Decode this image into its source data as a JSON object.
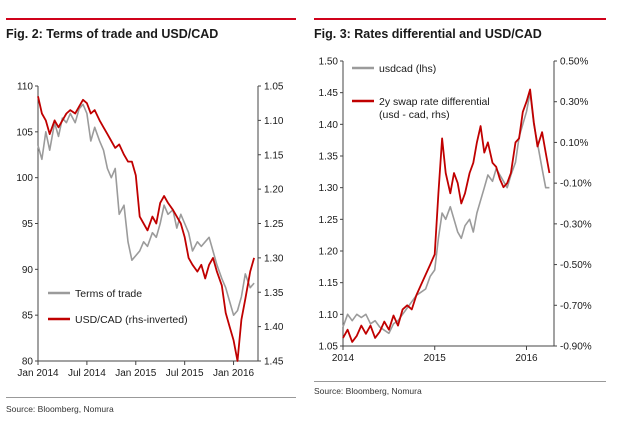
{
  "colors": {
    "accent": "#d0021b",
    "series_grey": "#9b9b9b",
    "series_red": "#c00000"
  },
  "chart_data": [
    {
      "type": "line",
      "title": "Fig. 2: Terms of trade and USD/CAD",
      "source": "Source: Bloomberg, Nomura",
      "grid": false,
      "legend_position": "bottom-left",
      "x_tick_labels": [
        "Jan 2014",
        "Jul 2014",
        "Jan 2015",
        "Jul 2015",
        "Jan 2016"
      ],
      "x_tick_values": [
        2014.0,
        2014.5,
        2015.0,
        2015.5,
        2016.0
      ],
      "xlim": [
        2014.0,
        2016.25
      ],
      "ylim_left": [
        80,
        110
      ],
      "y_left_ticks": [
        "80",
        "85",
        "90",
        "95",
        "100",
        "105",
        "110"
      ],
      "ylim_right": [
        1.45,
        1.05
      ],
      "y_right_inverted": true,
      "y_right_ticks": [
        "1.05",
        "1.10",
        "1.15",
        "1.20",
        "1.25",
        "1.30",
        "1.35",
        "1.40",
        "1.45"
      ],
      "series": [
        {
          "name": "Terms of trade",
          "axis": "left",
          "color": "#9b9b9b",
          "points": [
            [
              2014.0,
              103.5
            ],
            [
              2014.04,
              102
            ],
            [
              2014.08,
              105
            ],
            [
              2014.12,
              103
            ],
            [
              2014.17,
              106
            ],
            [
              2014.21,
              104.5
            ],
            [
              2014.25,
              106.5
            ],
            [
              2014.29,
              106
            ],
            [
              2014.33,
              107
            ],
            [
              2014.38,
              106
            ],
            [
              2014.42,
              107.5
            ],
            [
              2014.46,
              108
            ],
            [
              2014.5,
              107
            ],
            [
              2014.54,
              104
            ],
            [
              2014.58,
              105.5
            ],
            [
              2014.63,
              104
            ],
            [
              2014.67,
              103
            ],
            [
              2014.71,
              101
            ],
            [
              2014.75,
              100
            ],
            [
              2014.79,
              101
            ],
            [
              2014.83,
              96
            ],
            [
              2014.88,
              97
            ],
            [
              2014.92,
              93
            ],
            [
              2014.96,
              91
            ],
            [
              2015.0,
              91.5
            ],
            [
              2015.04,
              92
            ],
            [
              2015.08,
              93
            ],
            [
              2015.12,
              92.5
            ],
            [
              2015.17,
              94
            ],
            [
              2015.21,
              93.5
            ],
            [
              2015.25,
              95
            ],
            [
              2015.29,
              97
            ],
            [
              2015.33,
              96
            ],
            [
              2015.38,
              96.5
            ],
            [
              2015.42,
              94.5
            ],
            [
              2015.46,
              96
            ],
            [
              2015.5,
              95
            ],
            [
              2015.54,
              94
            ],
            [
              2015.58,
              92
            ],
            [
              2015.63,
              93
            ],
            [
              2015.67,
              92.5
            ],
            [
              2015.71,
              93
            ],
            [
              2015.75,
              93.5
            ],
            [
              2015.79,
              92
            ],
            [
              2015.83,
              90.5
            ],
            [
              2015.88,
              89
            ],
            [
              2015.92,
              88
            ],
            [
              2015.96,
              86.5
            ],
            [
              2016.0,
              85
            ],
            [
              2016.04,
              85.5
            ],
            [
              2016.08,
              87
            ],
            [
              2016.12,
              89.5
            ],
            [
              2016.17,
              88
            ],
            [
              2016.21,
              88.5
            ]
          ]
        },
        {
          "name": "USD/CAD (rhs-inverted)",
          "axis": "right",
          "color": "#c00000",
          "points": [
            [
              2014.0,
              1.065
            ],
            [
              2014.04,
              1.09
            ],
            [
              2014.08,
              1.1
            ],
            [
              2014.12,
              1.12
            ],
            [
              2014.17,
              1.1
            ],
            [
              2014.21,
              1.11
            ],
            [
              2014.25,
              1.1
            ],
            [
              2014.29,
              1.09
            ],
            [
              2014.33,
              1.085
            ],
            [
              2014.38,
              1.09
            ],
            [
              2014.42,
              1.08
            ],
            [
              2014.46,
              1.07
            ],
            [
              2014.5,
              1.075
            ],
            [
              2014.54,
              1.09
            ],
            [
              2014.58,
              1.085
            ],
            [
              2014.63,
              1.1
            ],
            [
              2014.67,
              1.11
            ],
            [
              2014.71,
              1.12
            ],
            [
              2014.75,
              1.13
            ],
            [
              2014.79,
              1.14
            ],
            [
              2014.83,
              1.135
            ],
            [
              2014.88,
              1.15
            ],
            [
              2014.92,
              1.16
            ],
            [
              2014.96,
              1.16
            ],
            [
              2015.0,
              1.18
            ],
            [
              2015.04,
              1.24
            ],
            [
              2015.08,
              1.25
            ],
            [
              2015.12,
              1.26
            ],
            [
              2015.17,
              1.24
            ],
            [
              2015.21,
              1.25
            ],
            [
              2015.25,
              1.22
            ],
            [
              2015.29,
              1.21
            ],
            [
              2015.33,
              1.22
            ],
            [
              2015.38,
              1.23
            ],
            [
              2015.42,
              1.24
            ],
            [
              2015.46,
              1.25
            ],
            [
              2015.5,
              1.27
            ],
            [
              2015.54,
              1.3
            ],
            [
              2015.58,
              1.31
            ],
            [
              2015.63,
              1.32
            ],
            [
              2015.67,
              1.31
            ],
            [
              2015.71,
              1.33
            ],
            [
              2015.75,
              1.31
            ],
            [
              2015.79,
              1.3
            ],
            [
              2015.83,
              1.32
            ],
            [
              2015.88,
              1.34
            ],
            [
              2015.92,
              1.38
            ],
            [
              2015.96,
              1.4
            ],
            [
              2016.0,
              1.42
            ],
            [
              2016.04,
              1.45
            ],
            [
              2016.08,
              1.39
            ],
            [
              2016.12,
              1.36
            ],
            [
              2016.17,
              1.32
            ],
            [
              2016.21,
              1.3
            ]
          ]
        }
      ]
    },
    {
      "type": "line",
      "title": "Fig. 3: Rates differential and USD/CAD",
      "source": "Source: Bloomberg, Nomura",
      "grid": false,
      "legend_position": "top-left",
      "x_tick_labels": [
        "2014",
        "2015",
        "2016"
      ],
      "x_tick_values": [
        2014.0,
        2015.0,
        2016.0
      ],
      "xlim": [
        2014.0,
        2016.3
      ],
      "ylim_left": [
        1.05,
        1.5
      ],
      "y_left_ticks": [
        "1.05",
        "1.10",
        "1.15",
        "1.20",
        "1.25",
        "1.30",
        "1.35",
        "1.40",
        "1.45",
        "1.50"
      ],
      "ylim_right": [
        -0.9,
        0.5
      ],
      "y_right_ticks": [
        "-0.90%",
        "-0.70%",
        "-0.50%",
        "-0.30%",
        "-0.10%",
        "0.10%",
        "0.30%",
        "0.50%"
      ],
      "series": [
        {
          "name": "usdcad (lhs)",
          "axis": "left",
          "color": "#9b9b9b",
          "points": [
            [
              2014.0,
              1.08
            ],
            [
              2014.05,
              1.1
            ],
            [
              2014.1,
              1.09
            ],
            [
              2014.15,
              1.1
            ],
            [
              2014.2,
              1.095
            ],
            [
              2014.25,
              1.1
            ],
            [
              2014.3,
              1.085
            ],
            [
              2014.35,
              1.09
            ],
            [
              2014.4,
              1.08
            ],
            [
              2014.45,
              1.075
            ],
            [
              2014.5,
              1.07
            ],
            [
              2014.55,
              1.085
            ],
            [
              2014.6,
              1.09
            ],
            [
              2014.65,
              1.1
            ],
            [
              2014.7,
              1.11
            ],
            [
              2014.75,
              1.12
            ],
            [
              2014.8,
              1.13
            ],
            [
              2014.85,
              1.135
            ],
            [
              2014.9,
              1.14
            ],
            [
              2014.95,
              1.16
            ],
            [
              2015.0,
              1.17
            ],
            [
              2015.04,
              1.22
            ],
            [
              2015.08,
              1.26
            ],
            [
              2015.12,
              1.25
            ],
            [
              2015.17,
              1.27
            ],
            [
              2015.21,
              1.25
            ],
            [
              2015.25,
              1.23
            ],
            [
              2015.29,
              1.22
            ],
            [
              2015.33,
              1.24
            ],
            [
              2015.38,
              1.25
            ],
            [
              2015.42,
              1.23
            ],
            [
              2015.46,
              1.26
            ],
            [
              2015.5,
              1.28
            ],
            [
              2015.54,
              1.3
            ],
            [
              2015.58,
              1.32
            ],
            [
              2015.63,
              1.31
            ],
            [
              2015.67,
              1.33
            ],
            [
              2015.71,
              1.32
            ],
            [
              2015.75,
              1.31
            ],
            [
              2015.79,
              1.3
            ],
            [
              2015.83,
              1.32
            ],
            [
              2015.88,
              1.34
            ],
            [
              2015.92,
              1.38
            ],
            [
              2015.96,
              1.4
            ],
            [
              2016.0,
              1.42
            ],
            [
              2016.04,
              1.45
            ],
            [
              2016.08,
              1.4
            ],
            [
              2016.12,
              1.37
            ],
            [
              2016.17,
              1.33
            ],
            [
              2016.21,
              1.3
            ],
            [
              2016.25,
              1.3
            ]
          ]
        },
        {
          "name": "2y swap rate differential (usd - cad, rhs)",
          "axis": "right",
          "color": "#c00000",
          "points": [
            [
              2014.0,
              -0.86
            ],
            [
              2014.05,
              -0.82
            ],
            [
              2014.1,
              -0.88
            ],
            [
              2014.15,
              -0.85
            ],
            [
              2014.2,
              -0.8
            ],
            [
              2014.25,
              -0.84
            ],
            [
              2014.3,
              -0.8
            ],
            [
              2014.35,
              -0.86
            ],
            [
              2014.4,
              -0.83
            ],
            [
              2014.45,
              -0.78
            ],
            [
              2014.5,
              -0.82
            ],
            [
              2014.55,
              -0.75
            ],
            [
              2014.6,
              -0.8
            ],
            [
              2014.65,
              -0.72
            ],
            [
              2014.7,
              -0.7
            ],
            [
              2014.75,
              -0.72
            ],
            [
              2014.8,
              -0.65
            ],
            [
              2014.85,
              -0.6
            ],
            [
              2014.9,
              -0.55
            ],
            [
              2014.95,
              -0.5
            ],
            [
              2015.0,
              -0.45
            ],
            [
              2015.04,
              -0.15
            ],
            [
              2015.08,
              0.12
            ],
            [
              2015.12,
              -0.05
            ],
            [
              2015.17,
              -0.15
            ],
            [
              2015.21,
              -0.05
            ],
            [
              2015.25,
              -0.1
            ],
            [
              2015.29,
              -0.2
            ],
            [
              2015.33,
              -0.15
            ],
            [
              2015.38,
              -0.05
            ],
            [
              2015.42,
              0.0
            ],
            [
              2015.46,
              0.1
            ],
            [
              2015.5,
              0.18
            ],
            [
              2015.54,
              0.05
            ],
            [
              2015.58,
              0.1
            ],
            [
              2015.63,
              0.0
            ],
            [
              2015.67,
              -0.02
            ],
            [
              2015.71,
              -0.08
            ],
            [
              2015.75,
              -0.12
            ],
            [
              2015.79,
              -0.1
            ],
            [
              2015.83,
              -0.05
            ],
            [
              2015.88,
              0.1
            ],
            [
              2015.92,
              0.12
            ],
            [
              2015.96,
              0.25
            ],
            [
              2016.0,
              0.3
            ],
            [
              2016.04,
              0.36
            ],
            [
              2016.08,
              0.2
            ],
            [
              2016.12,
              0.08
            ],
            [
              2016.17,
              0.15
            ],
            [
              2016.21,
              0.05
            ],
            [
              2016.25,
              -0.05
            ]
          ]
        }
      ]
    }
  ]
}
